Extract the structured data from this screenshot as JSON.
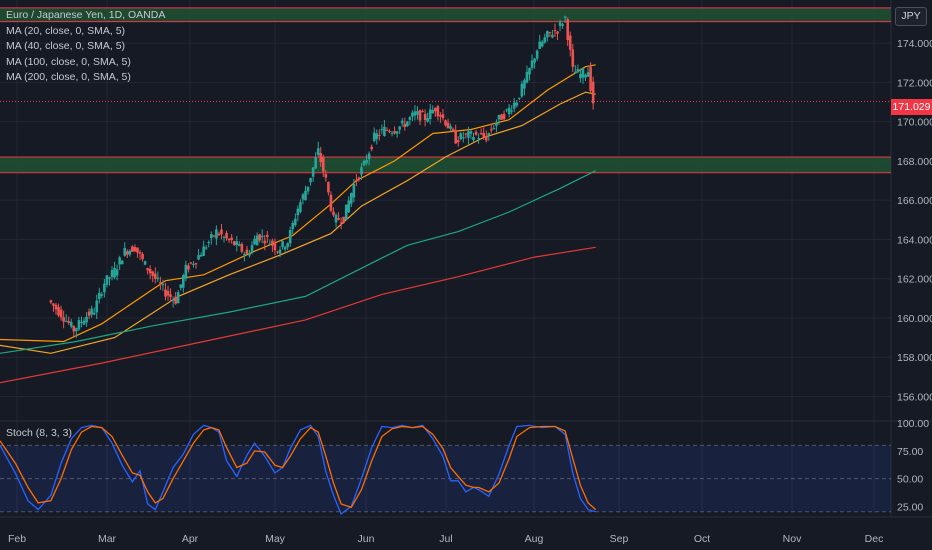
{
  "legend": {
    "title": "Euro / Japanese Yen, 1D, OANDA",
    "ma": [
      "MA (20, close, 0, SMA, 5)",
      "MA (40, close, 0, SMA, 5)",
      "MA (100, close, 0, SMA, 5)",
      "MA (200, close, 0, SMA, 5)"
    ]
  },
  "currency": "JPY",
  "last_price": "171.029",
  "stoch_label": "Stoch (8, 3, 3)",
  "colors": {
    "background": "#161a25",
    "up": "#26a69a",
    "down": "#ef5350",
    "ma20": "#ff9800",
    "ma40": "#f5a623",
    "ma100": "#1fa77e",
    "ma200": "#e53935",
    "stoch_k": "#2962ff",
    "stoch_d": "#ff6d00",
    "zone_fill": "#1e4f33",
    "zone_line": "#f23645"
  },
  "chart_data": [
    {
      "type": "candlestick",
      "title": "Euro / Japanese Yen, 1D, OANDA",
      "x_tick_labels": [
        "Feb",
        "Mar",
        "Apr",
        "May",
        "Jun",
        "Jul",
        "Aug",
        "Sep",
        "Oct",
        "Nov",
        "Dec"
      ],
      "y_tick_labels": [
        "156.000",
        "158.000",
        "160.000",
        "162.000",
        "164.000",
        "166.000",
        "168.000",
        "170.000",
        "172.000",
        "174.000"
      ],
      "ylim": [
        154.8,
        176.2
      ],
      "x_days_range": [
        -20,
        330
      ],
      "last_price": 171.029,
      "zones": [
        {
          "low": 175.1,
          "high": 175.8
        },
        {
          "low": 167.4,
          "high": 168.2
        }
      ],
      "close_series": [
        [
          0,
          160.9
        ],
        [
          5,
          160.2
        ],
        [
          10,
          159.4
        ],
        [
          14,
          160.0
        ],
        [
          18,
          160.4
        ],
        [
          22,
          161.8
        ],
        [
          26,
          162.4
        ],
        [
          30,
          163.4
        ],
        [
          34,
          163.6
        ],
        [
          38,
          162.7
        ],
        [
          42,
          162.0
        ],
        [
          46,
          161.3
        ],
        [
          50,
          160.9
        ],
        [
          54,
          162.5
        ],
        [
          58,
          163.0
        ],
        [
          62,
          163.7
        ],
        [
          66,
          164.4
        ],
        [
          70,
          164.0
        ],
        [
          74,
          163.7
        ],
        [
          78,
          163.2
        ],
        [
          82,
          164.2
        ],
        [
          86,
          164.0
        ],
        [
          90,
          163.5
        ],
        [
          94,
          163.9
        ],
        [
          98,
          165.6
        ],
        [
          102,
          166.8
        ],
        [
          106,
          168.5
        ],
        [
          109,
          167.0
        ],
        [
          112,
          165.0
        ],
        [
          116,
          165.1
        ],
        [
          120,
          166.8
        ],
        [
          124,
          167.8
        ],
        [
          128,
          169.2
        ],
        [
          132,
          169.6
        ],
        [
          136,
          169.6
        ],
        [
          140,
          169.9
        ],
        [
          144,
          170.4
        ],
        [
          148,
          170.2
        ],
        [
          152,
          170.7
        ],
        [
          156,
          170.0
        ],
        [
          160,
          169.1
        ],
        [
          164,
          169.3
        ],
        [
          168,
          169.3
        ],
        [
          172,
          169.2
        ],
        [
          176,
          170.0
        ],
        [
          180,
          170.5
        ],
        [
          184,
          171.1
        ],
        [
          188,
          172.3
        ],
        [
          192,
          173.7
        ],
        [
          196,
          174.4
        ],
        [
          200,
          174.7
        ],
        [
          203,
          175.3
        ],
        [
          206,
          172.6
        ],
        [
          209,
          172.4
        ],
        [
          212,
          172.6
        ],
        [
          214,
          171.0
        ]
      ],
      "series": [
        {
          "name": "MA (20, close, 0, SMA, 5)",
          "points": [
            [
              -20,
              158.9
            ],
            [
              5,
              158.8
            ],
            [
              20,
              159.7
            ],
            [
              45,
              161.9
            ],
            [
              60,
              162.2
            ],
            [
              80,
              163.4
            ],
            [
              95,
              164.2
            ],
            [
              110,
              165.8
            ],
            [
              120,
              167.0
            ],
            [
              135,
              168.0
            ],
            [
              150,
              169.4
            ],
            [
              165,
              169.6
            ],
            [
              180,
              170.1
            ],
            [
              195,
              171.6
            ],
            [
              210,
              172.8
            ],
            [
              214,
              172.9
            ]
          ]
        },
        {
          "name": "MA (40, close, 0, SMA, 5)",
          "points": [
            [
              -20,
              158.6
            ],
            [
              0,
              158.2
            ],
            [
              25,
              159.0
            ],
            [
              50,
              161.1
            ],
            [
              70,
              162.2
            ],
            [
              90,
              163.2
            ],
            [
              110,
              164.3
            ],
            [
              122,
              165.7
            ],
            [
              140,
              167.0
            ],
            [
              155,
              168.2
            ],
            [
              170,
              169.2
            ],
            [
              185,
              169.8
            ],
            [
              200,
              170.9
            ],
            [
              210,
              171.5
            ],
            [
              214,
              171.4
            ]
          ]
        },
        {
          "name": "MA (100, close, 0, SMA, 5)",
          "points": [
            [
              -20,
              158.2
            ],
            [
              10,
              158.8
            ],
            [
              40,
              159.6
            ],
            [
              70,
              160.3
            ],
            [
              100,
              161.1
            ],
            [
              120,
              162.4
            ],
            [
              140,
              163.7
            ],
            [
              160,
              164.4
            ],
            [
              180,
              165.4
            ],
            [
              200,
              166.6
            ],
            [
              214,
              167.5
            ]
          ]
        },
        {
          "name": "MA (200, close, 0, SMA, 5)",
          "points": [
            [
              -20,
              156.7
            ],
            [
              20,
              157.7
            ],
            [
              60,
              158.8
            ],
            [
              100,
              159.9
            ],
            [
              130,
              161.2
            ],
            [
              160,
              162.1
            ],
            [
              190,
              163.1
            ],
            [
              214,
              163.6
            ]
          ]
        }
      ]
    },
    {
      "type": "line",
      "title": "Stoch (8, 3, 3)",
      "y_tick_labels": [
        "25.00",
        "50.00",
        "75.00",
        "100.00"
      ],
      "ylim": [
        18,
        102
      ],
      "guide_levels": [
        20,
        50,
        80
      ],
      "series": [
        {
          "name": "%K",
          "points": [
            [
              -20,
              80
            ],
            [
              -14,
              55
            ],
            [
              -9,
              30
            ],
            [
              -5,
              22
            ],
            [
              0,
              35
            ],
            [
              4,
              64
            ],
            [
              8,
              86
            ],
            [
              12,
              96
            ],
            [
              16,
              98
            ],
            [
              20,
              96
            ],
            [
              24,
              82
            ],
            [
              28,
              62
            ],
            [
              32,
              47
            ],
            [
              35,
              57
            ],
            [
              38,
              27
            ],
            [
              41,
              22
            ],
            [
              44,
              38
            ],
            [
              48,
              60
            ],
            [
              52,
              72
            ],
            [
              56,
              90
            ],
            [
              60,
              98
            ],
            [
              63,
              96
            ],
            [
              66,
              92
            ],
            [
              69,
              66
            ],
            [
              73,
              52
            ],
            [
              77,
              71
            ],
            [
              80,
              82
            ],
            [
              84,
              70
            ],
            [
              88,
              55
            ],
            [
              91,
              60
            ],
            [
              94,
              77
            ],
            [
              98,
              94
            ],
            [
              102,
              98
            ],
            [
              105,
              88
            ],
            [
              108,
              56
            ],
            [
              111,
              35
            ],
            [
              114,
              18
            ],
            [
              118,
              25
            ],
            [
              122,
              50
            ],
            [
              126,
              78
            ],
            [
              130,
              97
            ],
            [
              134,
              96
            ],
            [
              138,
              98
            ],
            [
              142,
              96
            ],
            [
              146,
              98
            ],
            [
              150,
              86
            ],
            [
              154,
              70
            ],
            [
              157,
              48
            ],
            [
              160,
              48
            ],
            [
              163,
              38
            ],
            [
              166,
              42
            ],
            [
              168,
              40
            ],
            [
              172,
              34
            ],
            [
              176,
              54
            ],
            [
              180,
              80
            ],
            [
              183,
              97
            ],
            [
              188,
              98
            ],
            [
              193,
              96
            ],
            [
              198,
              97
            ],
            [
              202,
              90
            ],
            [
              205,
              55
            ],
            [
              208,
              32
            ],
            [
              211,
              22
            ],
            [
              214,
              20
            ]
          ]
        },
        {
          "name": "%D",
          "points": [
            [
              -20,
              84
            ],
            [
              -14,
              64
            ],
            [
              -9,
              42
            ],
            [
              -5,
              28
            ],
            [
              0,
              30
            ],
            [
              4,
              50
            ],
            [
              8,
              76
            ],
            [
              12,
              92
            ],
            [
              16,
              97
            ],
            [
              20,
              96
            ],
            [
              24,
              88
            ],
            [
              28,
              71
            ],
            [
              32,
              55
            ],
            [
              35,
              53
            ],
            [
              38,
              38
            ],
            [
              41,
              28
            ],
            [
              44,
              32
            ],
            [
              48,
              50
            ],
            [
              52,
              66
            ],
            [
              56,
              82
            ],
            [
              60,
              94
            ],
            [
              63,
              96
            ],
            [
              66,
              94
            ],
            [
              69,
              78
            ],
            [
              73,
              60
            ],
            [
              77,
              64
            ],
            [
              80,
              75
            ],
            [
              84,
              74
            ],
            [
              88,
              62
            ],
            [
              91,
              60
            ],
            [
              94,
              70
            ],
            [
              98,
              86
            ],
            [
              102,
              96
            ],
            [
              105,
              92
            ],
            [
              108,
              70
            ],
            [
              111,
              46
            ],
            [
              114,
              27
            ],
            [
              118,
              24
            ],
            [
              122,
              40
            ],
            [
              126,
              66
            ],
            [
              130,
              88
            ],
            [
              134,
              95
            ],
            [
              138,
              97
            ],
            [
              142,
              96
            ],
            [
              146,
              97
            ],
            [
              150,
              90
            ],
            [
              154,
              77
            ],
            [
              157,
              60
            ],
            [
              160,
              52
            ],
            [
              163,
              44
            ],
            [
              166,
              42
            ],
            [
              168,
              42
            ],
            [
              172,
              38
            ],
            [
              176,
              46
            ],
            [
              180,
              68
            ],
            [
              183,
              88
            ],
            [
              188,
              96
            ],
            [
              193,
              97
            ],
            [
              198,
              97
            ],
            [
              202,
              93
            ],
            [
              205,
              68
            ],
            [
              208,
              44
            ],
            [
              211,
              28
            ],
            [
              214,
              22
            ]
          ]
        }
      ]
    }
  ]
}
